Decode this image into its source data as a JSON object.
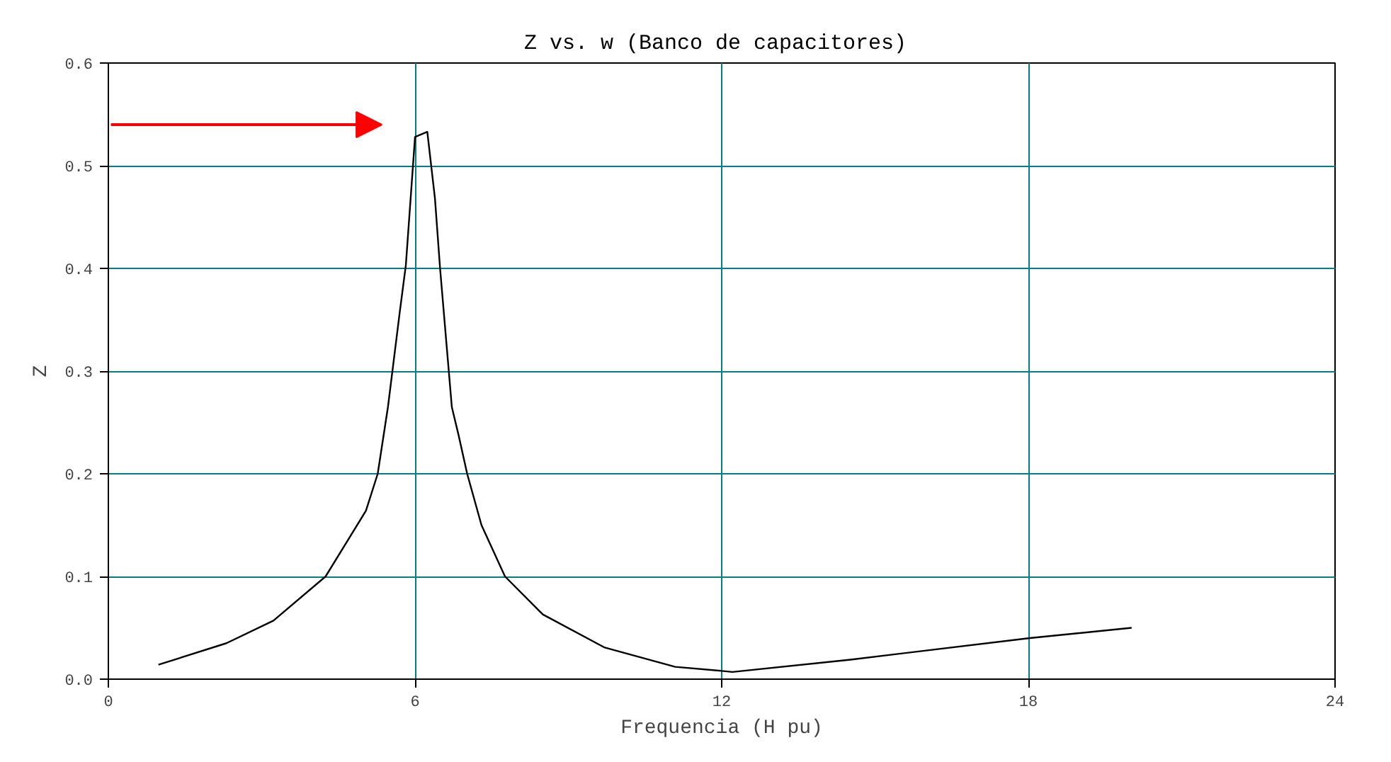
{
  "chart_data": {
    "type": "line",
    "title": "Z vs. w (Banco de  capacitores)",
    "xlabel": "Frequencia (H pu)",
    "ylabel": "Z",
    "x": [
      0.98,
      2.31,
      3.23,
      4.25,
      5.04,
      5.27,
      5.47,
      5.7,
      5.82,
      6.0,
      6.24,
      6.39,
      6.49,
      6.72,
      6.85,
      7.02,
      7.3,
      7.76,
      8.5,
      9.7,
      11.09,
      12.0,
      12.21,
      14.52,
      18.03,
      20.02
    ],
    "series": [
      {
        "color": "#000000",
        "values": [
          0.014,
          0.035,
          0.057,
          0.1,
          0.164,
          0.2,
          0.265,
          0.357,
          0.403,
          0.528,
          0.533,
          0.468,
          0.4,
          0.265,
          0.238,
          0.2,
          0.15,
          0.1,
          0.063,
          0.031,
          0.012,
          0.008,
          0.007,
          0.019,
          0.04,
          0.05
        ]
      }
    ],
    "xlim": [
      0,
      24
    ],
    "ylim": [
      0,
      0.6
    ],
    "xticks": [
      0,
      6,
      12,
      18,
      24
    ],
    "yticks": [
      {
        "value": 0,
        "label": "0.0"
      },
      {
        "value": 0.1,
        "label": "0.1"
      },
      {
        "value": 0.2,
        "label": "0.2"
      },
      {
        "value": 0.3,
        "label": "0.3"
      },
      {
        "value": 0.4,
        "label": "0.4"
      },
      {
        "value": 0.5,
        "label": "0.5"
      },
      {
        "value": 0.6,
        "label": "0.6"
      }
    ],
    "grid": true,
    "marker": "none",
    "line_style": "solid"
  }
}
